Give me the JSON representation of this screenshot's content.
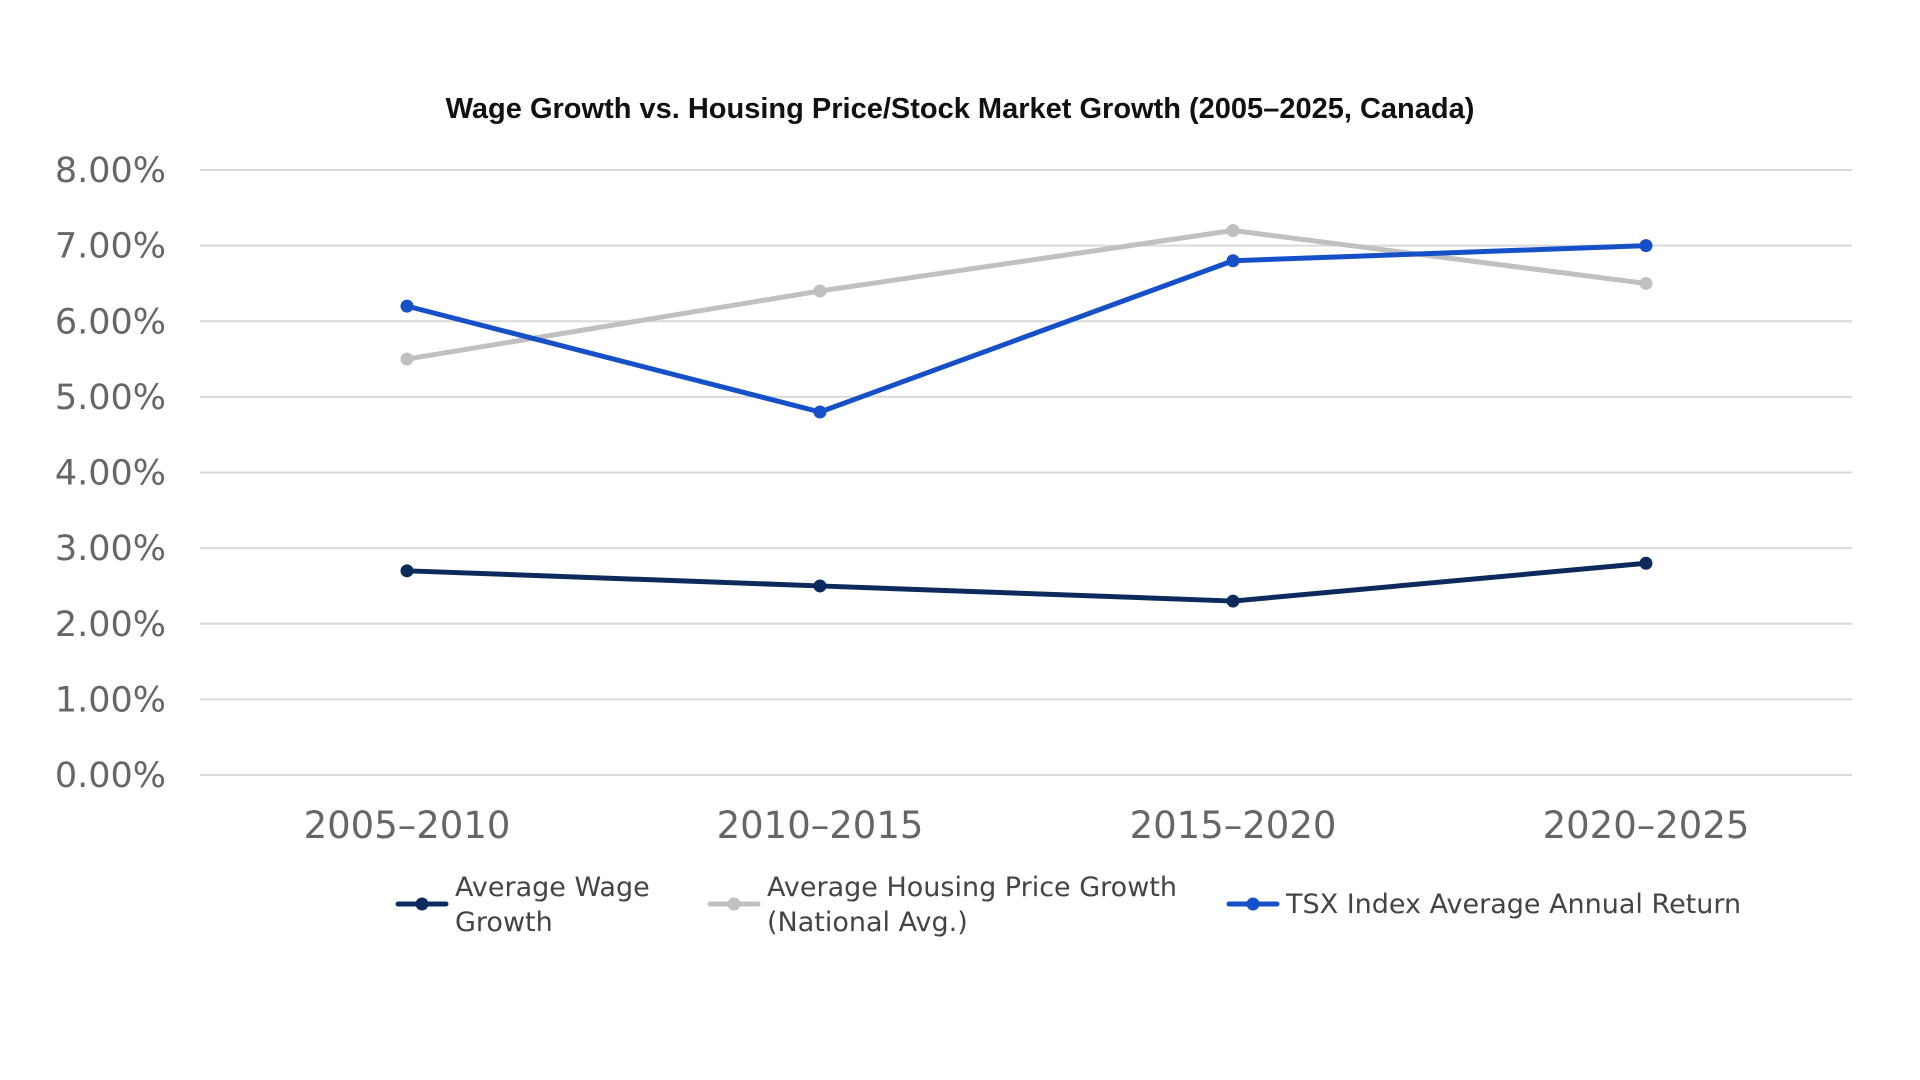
{
  "chart_data": {
    "type": "line",
    "title": "Wage Growth vs. Housing Price/Stock Market Growth (2005–2025, Canada)",
    "xlabel": "",
    "ylabel": "",
    "categories": [
      "2005–2010",
      "2010–2015",
      "2015–2020",
      "2020–2025"
    ],
    "ylim": [
      0,
      8
    ],
    "yticks": [
      0,
      1,
      2,
      3,
      4,
      5,
      6,
      7,
      8
    ],
    "ytick_labels": [
      "0.00%",
      "1.00%",
      "2.00%",
      "3.00%",
      "4.00%",
      "5.00%",
      "6.00%",
      "7.00%",
      "8.00%"
    ],
    "grid": true,
    "legend_position": "bottom",
    "series": [
      {
        "name": "Average Wage Growth",
        "legend_lines": [
          "Average Wage",
          "Growth"
        ],
        "color": "#0d2a5c",
        "values": [
          2.7,
          2.5,
          2.3,
          2.8
        ]
      },
      {
        "name": "Average Housing Price Growth (National Avg.)",
        "legend_lines": [
          "Average Housing Price Growth",
          "(National Avg.)"
        ],
        "color": "#c0c0c0",
        "values": [
          5.5,
          6.4,
          7.2,
          6.5
        ]
      },
      {
        "name": "TSX Index Average Annual Return",
        "legend_lines": [
          "TSX Index Average Annual Return"
        ],
        "color": "#1650c8",
        "values": [
          6.2,
          4.8,
          6.8,
          7.0
        ]
      }
    ]
  }
}
